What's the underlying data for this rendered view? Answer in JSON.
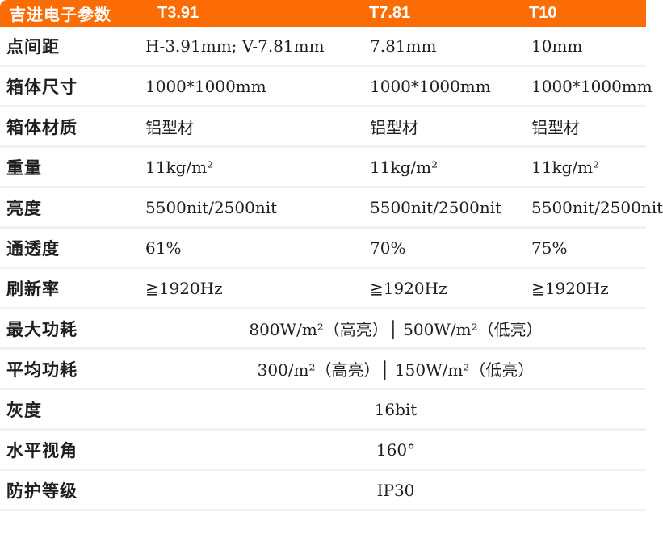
{
  "colors": {
    "accent_orange": "#FB6C05",
    "divider": "#F1F1F1",
    "header_text": "#FFFFFF",
    "body_text": "#1F1F1F"
  },
  "header": {
    "cells": [
      "吉进电子参数",
      "T3.91",
      "T7.81",
      "T10"
    ]
  },
  "rows": [
    {
      "label": "点间距",
      "values": [
        "H-3.91mm; V-7.81mm",
        "7.81mm",
        "10mm"
      ]
    },
    {
      "label": "箱体尺寸",
      "values": [
        "1000*1000mm",
        "1000*1000mm",
        "1000*1000mm"
      ]
    },
    {
      "label": "箱体材质",
      "values": [
        "铝型材",
        "铝型材",
        "铝型材"
      ]
    },
    {
      "label": "重量",
      "values": [
        "11kg/m²",
        "11kg/m²",
        "11kg/m²"
      ]
    },
    {
      "label": "亮度",
      "values": [
        "5500nit/2500nit",
        "5500nit/2500nit",
        "5500nit/2500nit"
      ]
    },
    {
      "label": "通透度",
      "values": [
        "61%",
        "70%",
        "75%"
      ]
    },
    {
      "label": "刷新率",
      "values": [
        "≧1920Hz",
        "≧1920Hz",
        "≧1920Hz"
      ]
    },
    {
      "label": "最大功耗",
      "merged": "800W/m²（高亮）│ 500W/m²（低亮）"
    },
    {
      "label": "平均功耗",
      "merged": "300/m²（高亮）│ 150W/m²（低亮）"
    },
    {
      "label": "灰度",
      "merged": "16bit"
    },
    {
      "label": "水平视角",
      "merged": "160°"
    },
    {
      "label": "防护等级",
      "merged": "IP30"
    }
  ]
}
